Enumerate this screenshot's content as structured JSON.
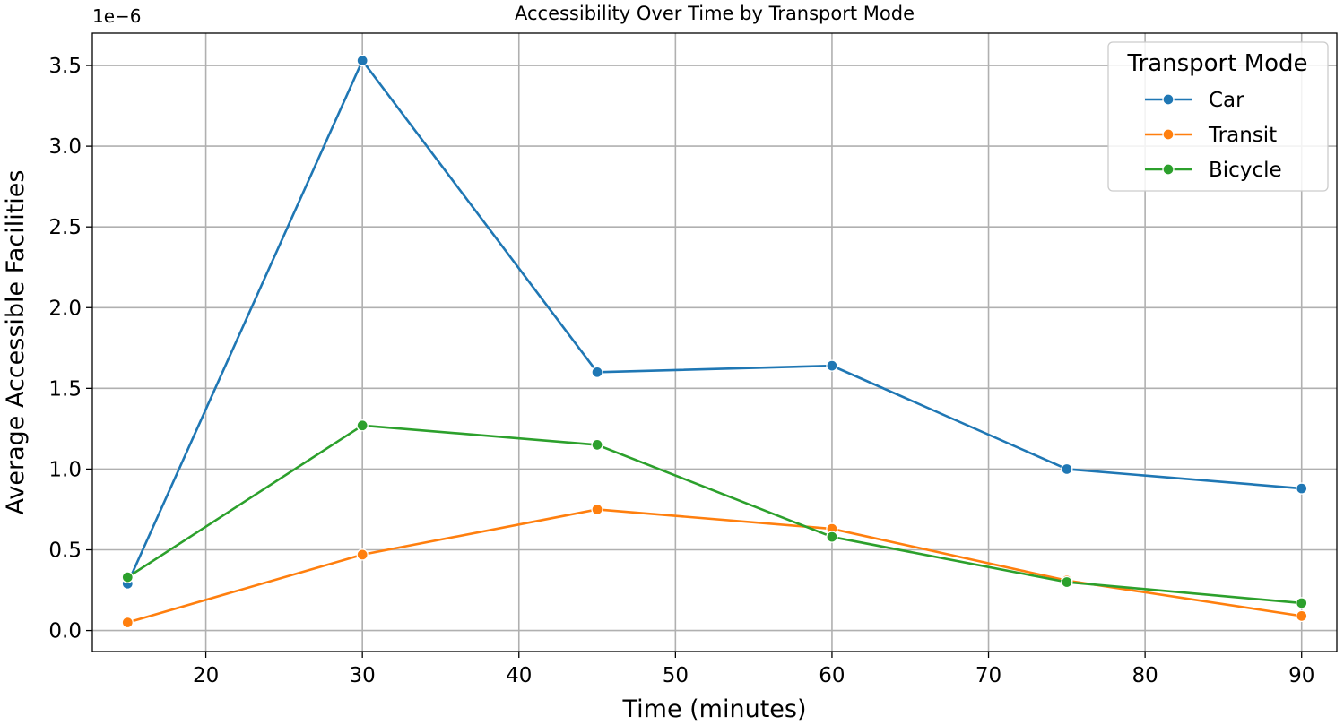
{
  "chart_data": {
    "type": "line",
    "title": "Accessibility Over Time by Transport Mode",
    "xlabel": "Time (minutes)",
    "ylabel": "Average Accessible Facilities",
    "y_offset_label": "1e−6",
    "xlim": [
      12.75,
      92.25
    ],
    "ylim": [
      -0.13,
      3.7
    ],
    "x_ticks": [
      20,
      30,
      40,
      50,
      60,
      70,
      80,
      90
    ],
    "x_tick_labels": [
      "20",
      "30",
      "40",
      "50",
      "60",
      "70",
      "80",
      "90"
    ],
    "y_ticks": [
      0.0,
      0.5,
      1.0,
      1.5,
      2.0,
      2.5,
      3.0,
      3.5
    ],
    "y_tick_labels": [
      "0.0",
      "0.5",
      "1.0",
      "1.5",
      "2.0",
      "2.5",
      "3.0",
      "3.5"
    ],
    "grid": true,
    "x": [
      15,
      30,
      45,
      60,
      75,
      90
    ],
    "series": [
      {
        "name": "Car",
        "color": "#1f77b4",
        "values": [
          0.29,
          3.53,
          1.6,
          1.64,
          1.0,
          0.88
        ]
      },
      {
        "name": "Transit",
        "color": "#ff7f0e",
        "values": [
          0.05,
          0.47,
          0.75,
          0.63,
          0.31,
          0.09
        ]
      },
      {
        "name": "Bicycle",
        "color": "#2ca02c",
        "values": [
          0.33,
          1.27,
          1.15,
          0.58,
          0.3,
          0.17
        ]
      }
    ],
    "legend": {
      "title": "Transport Mode",
      "placement": "top-right"
    }
  }
}
